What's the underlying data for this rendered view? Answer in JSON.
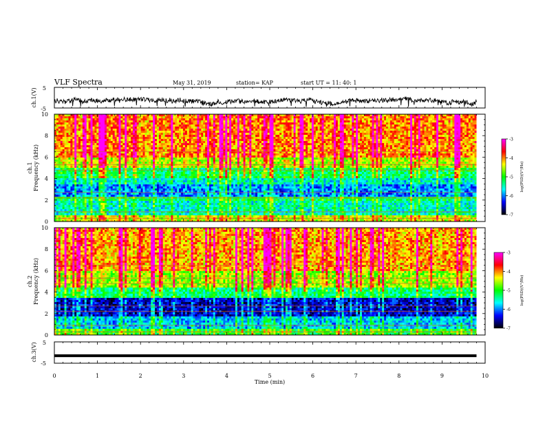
{
  "header": {
    "title": "VLF Spectra",
    "date": "May 31, 2019",
    "station": "station= KAP",
    "start": "start  UT  =   11: 40: 1"
  },
  "colorbar": {
    "label": "log(PSD)(V²/Hz)",
    "ticks": [
      "-3",
      "-4",
      "-5",
      "-6",
      "-7"
    ],
    "stops": [
      "#ff00ff",
      "#ff0000",
      "#ffff00",
      "#00ff00",
      "#00ffff",
      "#0000ff",
      "#000000"
    ]
  },
  "chart_data": [
    {
      "type": "line",
      "panel": "ch1-waveform",
      "ylabel": "ch.1(V)",
      "ylim": [
        -5,
        5
      ],
      "yticks": [
        "5",
        "-5"
      ],
      "xlim": [
        0,
        10
      ],
      "series": [
        {
          "x_range": [
            0,
            9.8
          ],
          "approx_level": -1.5,
          "amplitude_range": [
            -4.5,
            0.5
          ]
        }
      ],
      "color": "#000000"
    },
    {
      "type": "heatmap",
      "panel": "ch1-spectrogram",
      "ylabel_top": "ch.1",
      "ylabel": "Frequency (kHz)",
      "ylim": [
        0,
        10
      ],
      "yticks": [
        "0",
        "2",
        "4",
        "6",
        "8",
        "10"
      ],
      "xlim": [
        0,
        10
      ],
      "value_range": [
        -7,
        -3
      ],
      "bands": [
        {
          "from": 0,
          "to": 0.5,
          "level": -4.5
        },
        {
          "from": 0.5,
          "to": 2.0,
          "level": -5.5
        },
        {
          "from": 2.0,
          "to": 2.4,
          "level": -5.2
        },
        {
          "from": 2.4,
          "to": 3.4,
          "level": -6.0
        },
        {
          "from": 3.4,
          "to": 4.0,
          "level": -5.6
        },
        {
          "from": 4.0,
          "to": 5.0,
          "level": -5.2
        },
        {
          "from": 5.0,
          "to": 6.0,
          "level": -4.5
        },
        {
          "from": 6.0,
          "to": 10.0,
          "level": -4.0
        }
      ]
    },
    {
      "type": "heatmap",
      "panel": "ch2-spectrogram",
      "ylabel_top": "ch.2",
      "ylabel": "Frequency (kHz)",
      "ylim": [
        0,
        10
      ],
      "yticks": [
        "0",
        "2",
        "4",
        "6",
        "8",
        "10"
      ],
      "xlim": [
        0,
        10
      ],
      "value_range": [
        -7,
        -3
      ],
      "bands": [
        {
          "from": 0,
          "to": 0.5,
          "level": -5.0
        },
        {
          "from": 0.5,
          "to": 1.8,
          "level": -5.8
        },
        {
          "from": 1.8,
          "to": 3.5,
          "level": -6.5
        },
        {
          "from": 3.5,
          "to": 4.5,
          "level": -5.3
        },
        {
          "from": 4.5,
          "to": 6.0,
          "level": -4.6
        },
        {
          "from": 6.0,
          "to": 10.0,
          "level": -4.1
        }
      ]
    },
    {
      "type": "line",
      "panel": "ch3-waveform",
      "ylabel": "ch.3(V)",
      "ylim": [
        -5,
        5
      ],
      "yticks": [
        "5",
        "-5"
      ],
      "xlim": [
        0,
        10
      ],
      "xlabel": "Time (min)",
      "xticks": [
        "0",
        "1",
        "2",
        "3",
        "4",
        "5",
        "6",
        "7",
        "8",
        "9",
        "10"
      ],
      "series": [
        {
          "x_range": [
            0,
            9.8
          ],
          "value": -1.5
        }
      ],
      "color": "#000000"
    }
  ]
}
